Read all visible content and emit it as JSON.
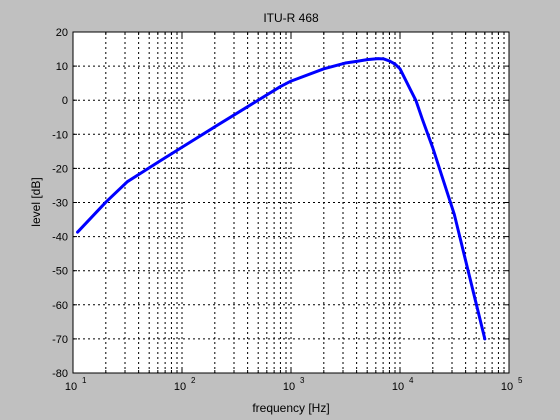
{
  "chart_data": {
    "type": "line",
    "title": "ITU-R 468",
    "xlabel": "frequency [Hz]",
    "ylabel": "level [dB]",
    "xscale": "log",
    "xlim": [
      10,
      100000
    ],
    "ylim": [
      -80,
      20
    ],
    "yticks": [
      20,
      10,
      0,
      -10,
      -20,
      -30,
      -40,
      -50,
      -60,
      -70,
      -80
    ],
    "xticks": [
      {
        "value": 10,
        "base": "10",
        "exp": "1"
      },
      {
        "value": 100,
        "base": "10",
        "exp": "2"
      },
      {
        "value": 1000,
        "base": "10",
        "exp": "3"
      },
      {
        "value": 10000,
        "base": "10",
        "exp": "4"
      },
      {
        "value": 100000,
        "base": "10",
        "exp": "5"
      }
    ],
    "grid": true,
    "grid_style": "dashed",
    "series": [
      {
        "color": "#0000ff",
        "x": [
          11,
          20,
          31.5,
          63,
          100,
          200,
          400,
          800,
          1000,
          2000,
          3150,
          4000,
          5000,
          6300,
          7100,
          8000,
          9000,
          10000,
          12500,
          14000,
          16000,
          20000,
          31500,
          60000
        ],
        "y": [
          -38.7,
          -29.9,
          -23.9,
          -17.8,
          -13.8,
          -7.8,
          -1.9,
          4.0,
          5.6,
          9.2,
          10.9,
          11.4,
          11.9,
          12.2,
          12.1,
          11.5,
          10.6,
          9.2,
          3.0,
          -0.1,
          -5.5,
          -14.0,
          -33.5,
          -70.0
        ]
      }
    ]
  }
}
